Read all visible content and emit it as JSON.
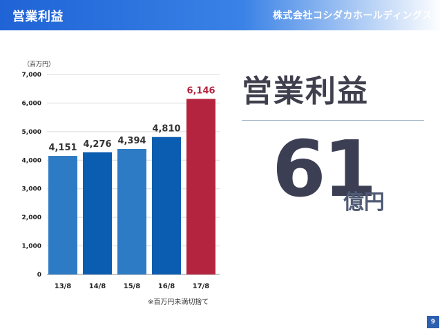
{
  "header": {
    "title": "営業利益",
    "company": "株式会社コシダカホールディングス"
  },
  "headline": {
    "title": "営業利益",
    "value": "61",
    "unit": "億円"
  },
  "footnote": "※百万円未満切捨て",
  "page_number": "9",
  "colors": {
    "bar_light": "#2e7bc5",
    "bar_dark": "#0a5db0",
    "bar_highlight": "#b5243f"
  },
  "chart_data": {
    "type": "bar",
    "unit_label": "（百万円）",
    "categories": [
      "13/8",
      "14/8",
      "15/8",
      "16/8",
      "17/8"
    ],
    "values": [
      4151,
      4276,
      4394,
      4810,
      6146
    ],
    "value_labels": [
      "4,151",
      "4,276",
      "4,394",
      "4,810",
      "6,146"
    ],
    "y_ticks": [
      0,
      1000,
      2000,
      3000,
      4000,
      5000,
      6000,
      7000
    ],
    "y_tick_labels": [
      "0",
      "1,000",
      "2,000",
      "3,000",
      "4,000",
      "5,000",
      "6,000",
      "7,000"
    ],
    "ylim": [
      0,
      7000
    ],
    "grid": true,
    "highlight_index": 4
  }
}
